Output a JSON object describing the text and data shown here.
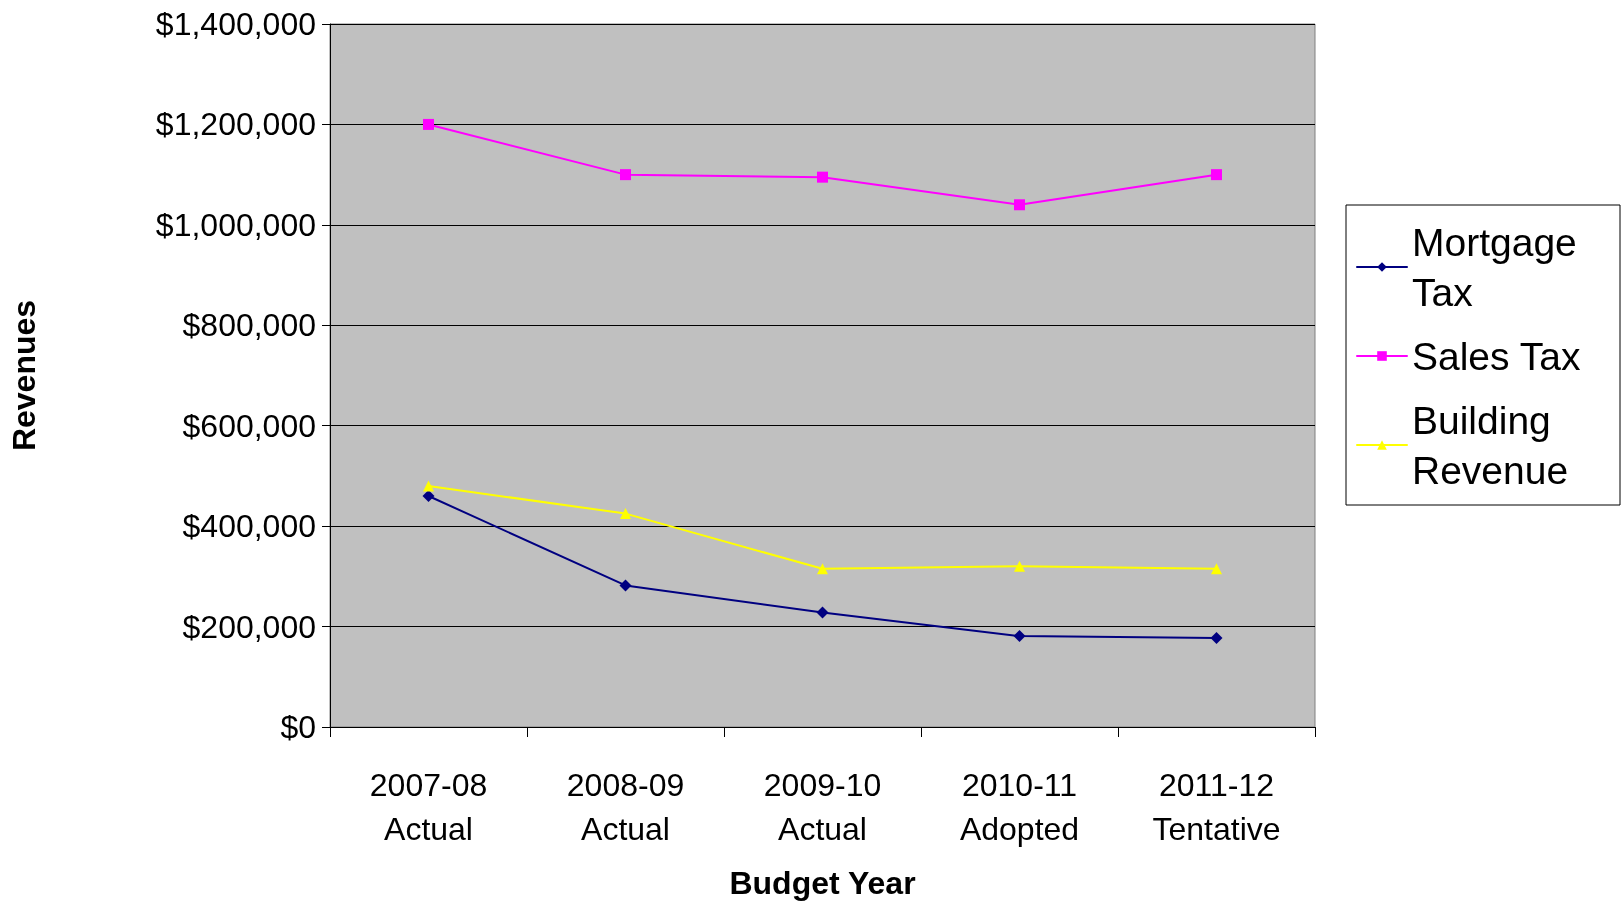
{
  "chart_data": {
    "type": "line",
    "xlabel": "Budget Year",
    "ylabel": "Revenues",
    "categories": [
      "2007-08\nActual",
      "2008-09\nActual",
      "2009-10\nActual",
      "2010-11\nAdopted",
      "2011-12\nTentative"
    ],
    "series": [
      {
        "name": "Mortgage Tax",
        "color": "#000080",
        "marker": "diamond",
        "values": [
          460000,
          282000,
          228000,
          181000,
          177000
        ]
      },
      {
        "name": "Sales Tax",
        "color": "#ff00ff",
        "marker": "square",
        "values": [
          1200000,
          1100000,
          1095000,
          1040000,
          1100000
        ]
      },
      {
        "name": "Building Revenue",
        "color": "#ffff00",
        "marker": "triangle",
        "values": [
          480000,
          425000,
          315000,
          320000,
          315000
        ]
      }
    ],
    "ylim": [
      0,
      1400000
    ],
    "yticks": [
      {
        "value": 0,
        "label": "$0"
      },
      {
        "value": 200000,
        "label": "$200,000"
      },
      {
        "value": 400000,
        "label": "$400,000"
      },
      {
        "value": 600000,
        "label": "$600,000"
      },
      {
        "value": 800000,
        "label": "$800,000"
      },
      {
        "value": 1000000,
        "label": "$1,000,000"
      },
      {
        "value": 1200000,
        "label": "$1,200,000"
      },
      {
        "value": 1400000,
        "label": "$1,400,000"
      }
    ],
    "grid": "y",
    "legend": "right"
  }
}
